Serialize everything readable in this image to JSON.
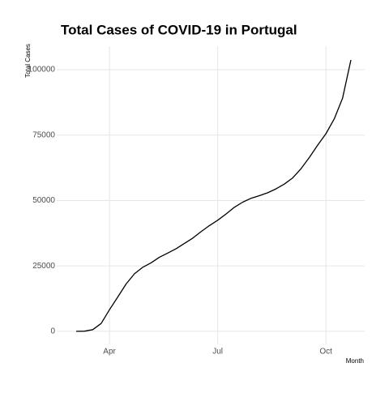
{
  "chart_data": {
    "type": "line",
    "title": "Total Cases of COVID-19 in Portugal",
    "x_label": "Month",
    "y_label": "Total Cases",
    "categories": [
      null,
      null,
      null,
      null,
      "Apr",
      null,
      null,
      null,
      null,
      null,
      null,
      null,
      null,
      null,
      null,
      null,
      null,
      "Jul",
      null,
      null,
      null,
      null,
      null,
      null,
      null,
      null,
      null,
      null,
      null,
      null,
      "Oct",
      null,
      null,
      null
    ],
    "values": [
      0,
      60,
      642,
      2995,
      8251,
      13141,
      18091,
      21982,
      24505,
      26182,
      28319,
      29912,
      31596,
      33592,
      35600,
      38089,
      40415,
      42454,
      44859,
      47426,
      49379,
      50868,
      51848,
      52945,
      54448,
      56274,
      58633,
      62126,
      66396,
      71156,
      75542,
      81256,
      89121,
      103736
    ],
    "color": "#000000",
    "ylim": [
      -5000,
      109000
    ],
    "yticks": [
      0,
      25000,
      50000,
      75000,
      100000
    ],
    "grid": true
  }
}
